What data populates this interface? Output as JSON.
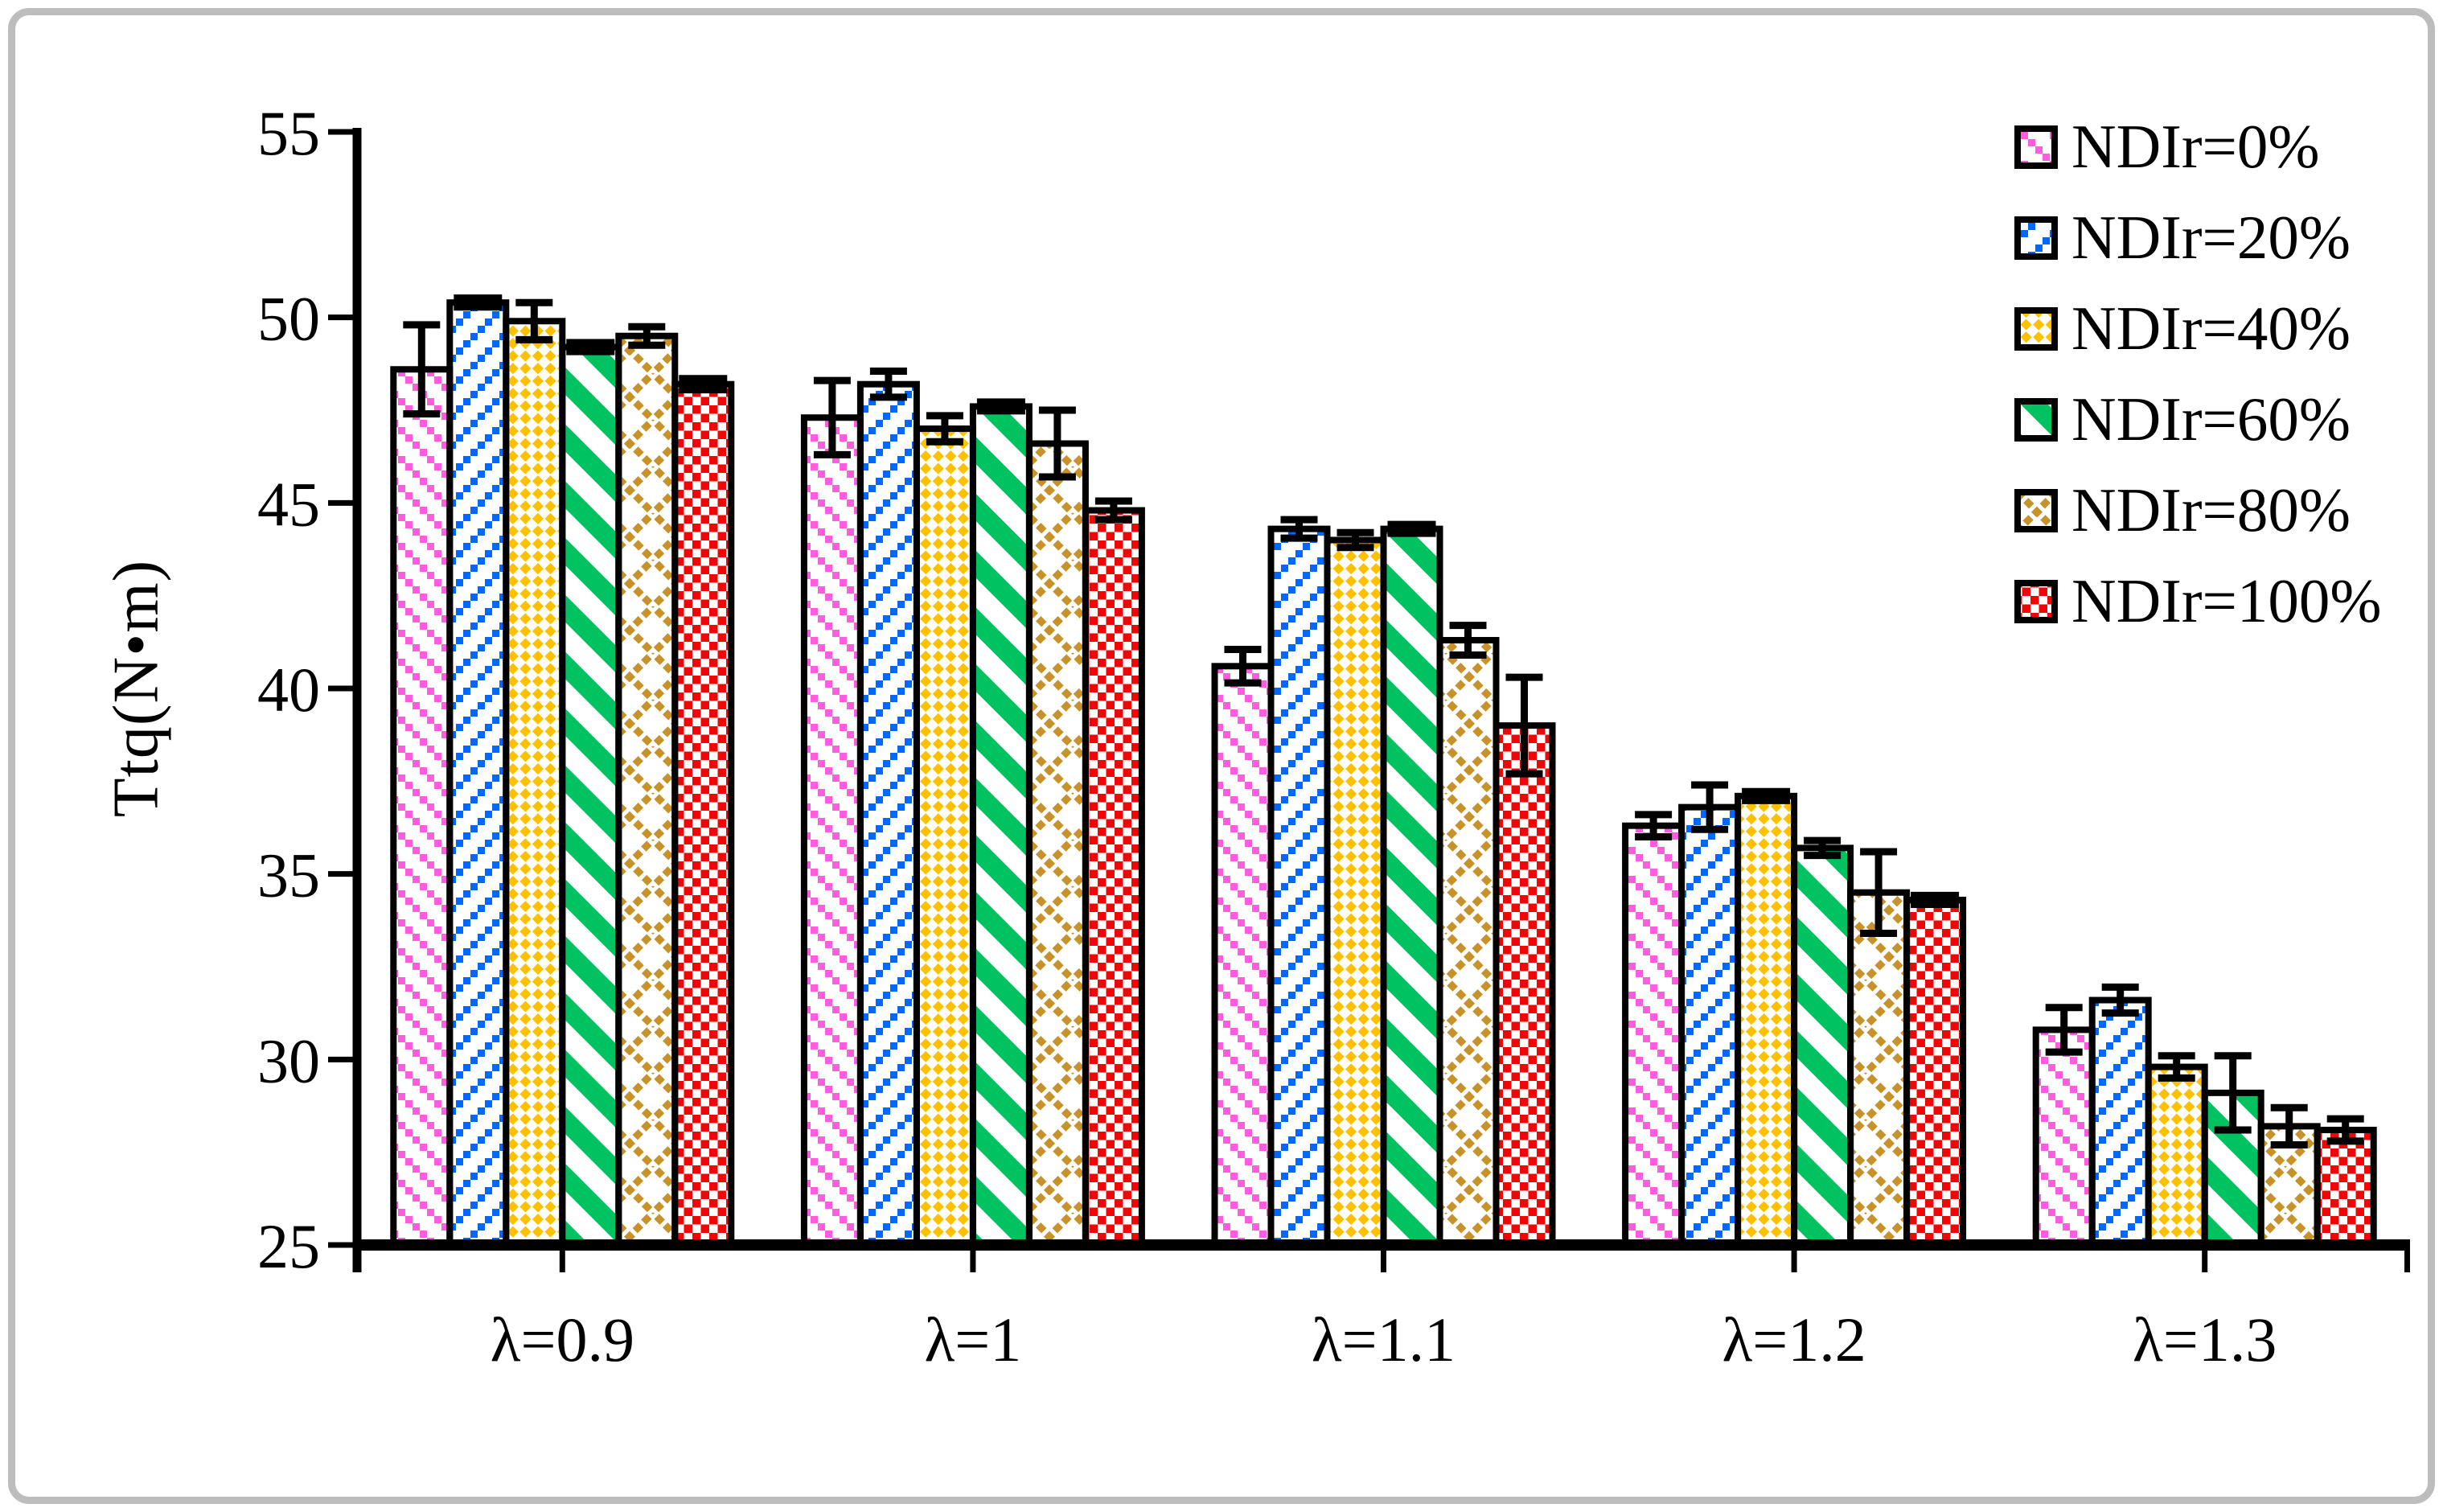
{
  "figure": {
    "background": "#ffffff",
    "border_color": "#bdbdbd"
  },
  "chart_data": {
    "type": "bar",
    "title": "",
    "xlabel": "",
    "ylabel": "Ttq(N•m)",
    "ylim": [
      25,
      55
    ],
    "yticks": [
      25,
      30,
      35,
      40,
      45,
      50,
      55
    ],
    "grid": false,
    "error_bars": true,
    "legend_position": "top-right",
    "categories": [
      "λ=0.9",
      "λ=1",
      "λ=1.1",
      "λ=1.2",
      "λ=1.3"
    ],
    "series": [
      {
        "name": "NDIr=0%",
        "color": "#ff5ce0",
        "pattern": "thin-diagonal-dash-down",
        "values": [
          48.6,
          47.3,
          40.6,
          36.3,
          30.8
        ],
        "errors": [
          1.2,
          1.0,
          0.45,
          0.3,
          0.6
        ]
      },
      {
        "name": "NDIr=20%",
        "color": "#0067ff",
        "pattern": "thin-diagonal-dash-up",
        "values": [
          50.4,
          48.2,
          44.3,
          36.8,
          31.6
        ],
        "errors": [
          0.12,
          0.35,
          0.25,
          0.6,
          0.35
        ]
      },
      {
        "name": "NDIr=40%",
        "color": "#ffc000",
        "pattern": "small-diamond-checker",
        "values": [
          49.9,
          47.0,
          44.0,
          37.1,
          29.8
        ],
        "errors": [
          0.5,
          0.35,
          0.2,
          0.12,
          0.3
        ]
      },
      {
        "name": "NDIr=60%",
        "color": "#00c261",
        "pattern": "wide-diagonal-stripe-up",
        "values": [
          49.2,
          47.6,
          44.3,
          35.7,
          29.1
        ],
        "errors": [
          0.12,
          0.12,
          0.12,
          0.2,
          1.0
        ]
      },
      {
        "name": "NDIr=80%",
        "color": "#c8922b",
        "pattern": "open-diamond-lattice",
        "values": [
          49.5,
          46.6,
          41.3,
          34.5,
          28.2
        ],
        "errors": [
          0.25,
          0.9,
          0.4,
          1.1,
          0.5
        ]
      },
      {
        "name": "NDIr=100%",
        "color": "#f00606",
        "pattern": "dense-checker",
        "values": [
          48.2,
          44.8,
          39.0,
          34.3,
          28.1
        ],
        "errors": [
          0.15,
          0.25,
          1.3,
          0.12,
          0.3
        ]
      }
    ]
  }
}
